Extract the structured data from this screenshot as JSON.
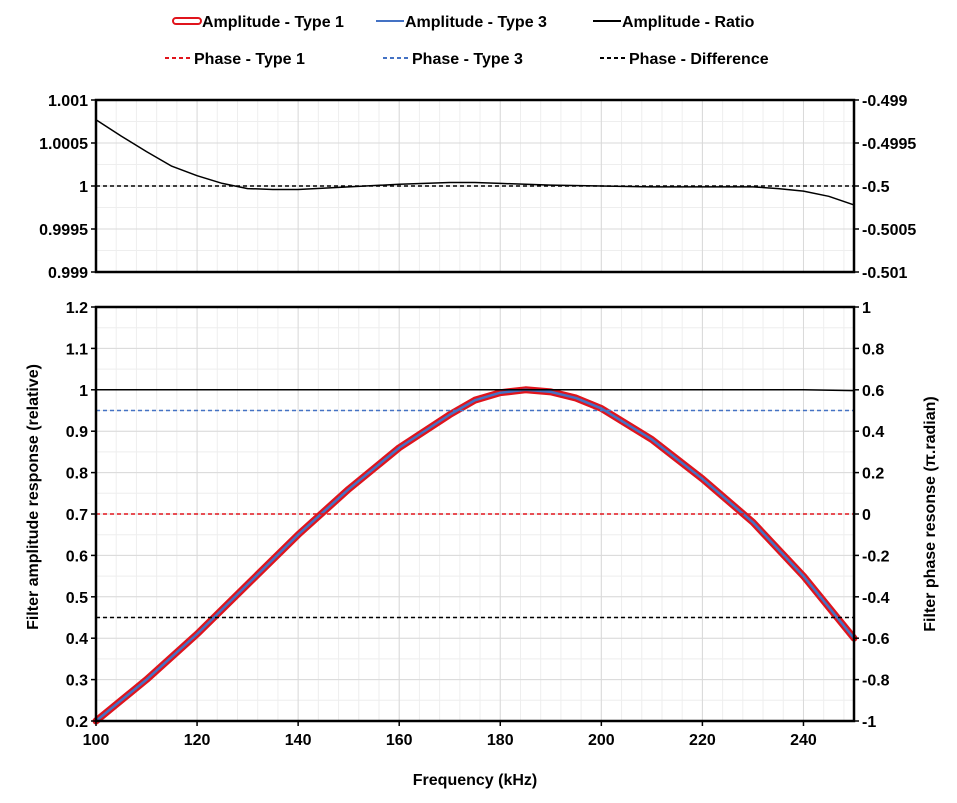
{
  "chart_data": [
    {
      "type": "line",
      "panel": "top",
      "xlim": [
        100,
        250
      ],
      "ylim": [
        0.999,
        1.001
      ],
      "y2lim": [
        -0.501,
        -0.499
      ],
      "yticks": [
        "1.001",
        "1.0005",
        "1",
        "0.9995",
        "0.999"
      ],
      "y2ticks": [
        "-0.499",
        "-0.4995",
        "-0.5",
        "-0.5005",
        "-0.501"
      ],
      "grid": true,
      "series": [
        {
          "name": "Amplitude - Ratio",
          "axis": "left",
          "color": "#000000",
          "style": "solid",
          "x": [
            100,
            105,
            110,
            115,
            120,
            125,
            130,
            135,
            140,
            150,
            160,
            170,
            175,
            180,
            190,
            200,
            210,
            220,
            230,
            235,
            240,
            245,
            250
          ],
          "y": [
            1.00077,
            1.00058,
            1.0004,
            1.00023,
            1.00012,
            1.00003,
            0.99997,
            0.99996,
            0.99996,
            0.99999,
            1.00002,
            1.00004,
            1.00004,
            1.00003,
            1.00001,
            1.0,
            0.99999,
            0.99999,
            0.99999,
            0.99997,
            0.99994,
            0.99988,
            0.99978
          ]
        },
        {
          "name": "Phase - Difference",
          "axis": "right",
          "color": "#000000",
          "style": "dashed",
          "x": [
            100,
            250
          ],
          "y": [
            -0.5,
            -0.5
          ]
        }
      ]
    },
    {
      "type": "line",
      "panel": "bottom",
      "xlabel": "Frequency (kHz)",
      "ylabel": "Filter amplitude response (relative)",
      "y2label": "Filter phase resonse (π.radian)",
      "xlim": [
        100,
        250
      ],
      "ylim": [
        0.2,
        1.2
      ],
      "y2lim": [
        -1,
        1
      ],
      "xticks": [
        "100",
        "120",
        "140",
        "160",
        "180",
        "200",
        "220",
        "240"
      ],
      "yticks": [
        "1.2",
        "1.1",
        "1",
        "0.9",
        "0.8",
        "0.7",
        "0.6",
        "0.5",
        "0.4",
        "0.3",
        "0.2"
      ],
      "y2ticks": [
        "1",
        "0.8",
        "0.6",
        "0.4",
        "0.2",
        "0",
        "-0.2",
        "-0.4",
        "-0.6",
        "-0.8",
        "-1"
      ],
      "grid": true,
      "series": [
        {
          "name": "Amplitude - Type 1",
          "axis": "left",
          "color": "#e0141c",
          "style": "double",
          "x": [
            100,
            110,
            120,
            130,
            140,
            150,
            160,
            170,
            175,
            180,
            185,
            190,
            195,
            200,
            210,
            220,
            230,
            240,
            250
          ],
          "y": [
            0.2,
            0.3,
            0.41,
            0.53,
            0.65,
            0.76,
            0.86,
            0.94,
            0.975,
            0.993,
            1.0,
            0.995,
            0.98,
            0.955,
            0.88,
            0.785,
            0.68,
            0.55,
            0.4
          ]
        },
        {
          "name": "Amplitude - Type 3",
          "axis": "left",
          "color": "#4472c4",
          "style": "solid",
          "x": [
            100,
            110,
            120,
            130,
            140,
            150,
            160,
            170,
            175,
            180,
            185,
            190,
            195,
            200,
            210,
            220,
            230,
            240,
            250
          ],
          "y": [
            0.2,
            0.3,
            0.41,
            0.53,
            0.65,
            0.76,
            0.86,
            0.94,
            0.975,
            0.993,
            1.0,
            0.995,
            0.98,
            0.955,
            0.88,
            0.785,
            0.68,
            0.55,
            0.4
          ]
        },
        {
          "name": "Amplitude - Ratio",
          "axis": "left",
          "color": "#000000",
          "style": "solid",
          "x": [
            100,
            240,
            250
          ],
          "y": [
            1.0,
            1.0,
            0.998
          ]
        },
        {
          "name": "Phase - Type 1",
          "axis": "right",
          "color": "#e0141c",
          "style": "dashed",
          "x": [
            100,
            250
          ],
          "y": [
            0.0,
            0.0
          ]
        },
        {
          "name": "Phase - Type 3",
          "axis": "right",
          "color": "#4472c4",
          "style": "dashed",
          "x": [
            100,
            250
          ],
          "y": [
            0.5,
            0.5
          ]
        },
        {
          "name": "Phase - Difference",
          "axis": "right",
          "color": "#000000",
          "style": "dashed",
          "x": [
            100,
            250
          ],
          "y": [
            -0.5,
            -0.5
          ]
        }
      ]
    }
  ],
  "legend": {
    "placement": "top",
    "rows": [
      [
        {
          "label": "Amplitude - Type 1",
          "color": "#e0141c",
          "style": "double"
        },
        {
          "label": "Amplitude - Type 3",
          "color": "#4472c4",
          "style": "solid"
        },
        {
          "label": "Amplitude - Ratio",
          "color": "#000000",
          "style": "solid"
        }
      ],
      [
        {
          "label": "Phase - Type 1",
          "color": "#e0141c",
          "style": "dashed"
        },
        {
          "label": "Phase - Type 3",
          "color": "#4472c4",
          "style": "dashed"
        },
        {
          "label": "Phase - Difference",
          "color": "#000000",
          "style": "dashed"
        }
      ]
    ]
  },
  "colors": {
    "grid": "#d9d9d9",
    "grid_minor": "#eeeeee",
    "axis": "#000000"
  }
}
